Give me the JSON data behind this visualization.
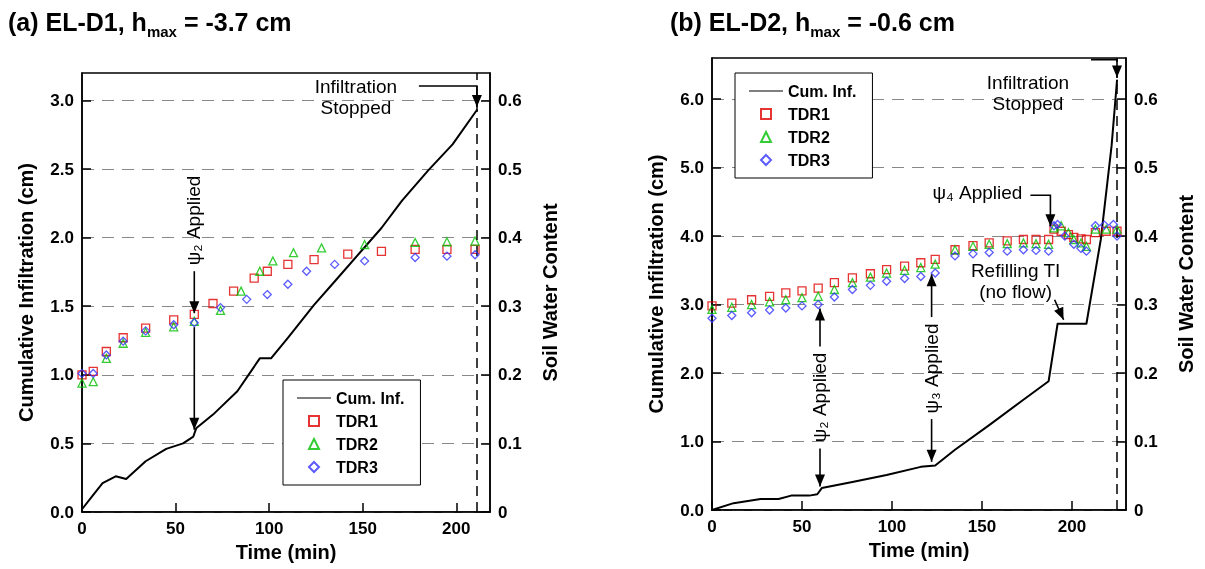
{
  "chart_data": [
    {
      "type": "line",
      "title": "(a) EL-D1, h$_{max}$ = -3.7 cm",
      "xlabel": "Time (min)",
      "ylabel": "Cumulative Infiltration (cm)",
      "y2label": "Soil Water Content",
      "xlim": [
        0,
        218
      ],
      "xticks": [
        0,
        50,
        100,
        150,
        200
      ],
      "ylim": [
        0,
        3.2
      ],
      "yticks": [
        {
          "value": 0,
          "label": "0.0"
        },
        {
          "value": 0.5,
          "label": "0.5"
        },
        {
          "value": 1,
          "label": "1.0"
        },
        {
          "value": 1.5,
          "label": "1.5"
        },
        {
          "value": 2,
          "label": "2.0"
        },
        {
          "value": 2.5,
          "label": "2.5"
        },
        {
          "value": 3,
          "label": "3.0"
        }
      ],
      "y2lim": [
        0,
        0.64
      ],
      "y2ticks": [
        0,
        0.1,
        0.2,
        0.3,
        0.4,
        0.5,
        0.6
      ],
      "grid": "y",
      "legend": "bottom right",
      "series": [
        {
          "name": "Cum. Inf.",
          "type": "line",
          "color": "#000000",
          "marker": "none",
          "line_style": "solid",
          "x": [
            0,
            5.7,
            11,
            18,
            23.6,
            34,
            45,
            54,
            59.5,
            61,
            70,
            83,
            90,
            95,
            101,
            110,
            117,
            124,
            135,
            151,
            160,
            171,
            185,
            198,
            211
          ],
          "values": [
            0.02,
            0.12,
            0.21,
            0.26,
            0.24,
            0.37,
            0.46,
            0.5,
            0.55,
            0.61,
            0.71,
            0.88,
            1.02,
            1.12,
            1.12,
            1.27,
            1.39,
            1.51,
            1.68,
            1.93,
            2.07,
            2.27,
            2.49,
            2.68,
            2.93
          ]
        },
        {
          "name": "TDR1",
          "type": "scatter",
          "axis": "y2",
          "color": "#e00000",
          "marker": "square",
          "x": [
            0,
            6,
            13,
            22,
            34,
            49,
            60,
            70,
            81,
            92,
            99,
            110,
            124,
            142,
            160,
            178,
            195,
            210
          ],
          "values": [
            0.2,
            0.205,
            0.234,
            0.254,
            0.268,
            0.28,
            0.288,
            0.304,
            0.322,
            0.341,
            0.351,
            0.361,
            0.368,
            0.376,
            0.38,
            0.383,
            0.383,
            0.383
          ]
        },
        {
          "name": "TDR2",
          "type": "scatter",
          "axis": "y2",
          "color": "#00c000",
          "marker": "triangle",
          "x": [
            0,
            6,
            13,
            22,
            34,
            49,
            60,
            74,
            85,
            95,
            102,
            113,
            128,
            151,
            178,
            195,
            210
          ],
          "values": [
            0.188,
            0.19,
            0.224,
            0.246,
            0.262,
            0.27,
            0.278,
            0.294,
            0.322,
            0.351,
            0.366,
            0.378,
            0.385,
            0.39,
            0.393,
            0.394,
            0.395
          ]
        },
        {
          "name": "TDR3",
          "type": "scatter",
          "axis": "y2",
          "color": "#3333ff",
          "marker": "diamond",
          "x": [
            0,
            6,
            13,
            22,
            34,
            49,
            60,
            74,
            88,
            99,
            110,
            120,
            135,
            151,
            178,
            195,
            210
          ],
          "values": [
            0.202,
            0.202,
            0.229,
            0.249,
            0.264,
            0.273,
            0.276,
            0.298,
            0.31,
            0.317,
            0.332,
            0.351,
            0.361,
            0.366,
            0.371,
            0.373,
            0.375
          ]
        }
      ],
      "ref_lines": [
        {
          "axis": "x",
          "value": 211,
          "color": "#000000",
          "line_style": "dashed"
        }
      ],
      "annotations": [
        {
          "text": "Infiltration Stopped",
          "x": 211,
          "y": 2.93
        },
        {
          "text": "ψ₂ Applied",
          "x": 60,
          "y": 1.42
        }
      ]
    },
    {
      "type": "line",
      "title": "(b) EL-D2, h$_{max}$ = -0.6 cm",
      "xlabel": "Time (min)",
      "ylabel": "Cumulative Infiltration (cm)",
      "y2label": "Soil Water Content",
      "xlim": [
        0,
        230
      ],
      "xticks": [
        0,
        50,
        100,
        150,
        200
      ],
      "ylim": [
        0,
        6.6
      ],
      "yticks": [
        {
          "value": 0,
          "label": "0.0"
        },
        {
          "value": 1,
          "label": "1.0"
        },
        {
          "value": 2,
          "label": "2.0"
        },
        {
          "value": 3,
          "label": "3.0"
        },
        {
          "value": 4,
          "label": "4.0"
        },
        {
          "value": 5,
          "label": "5.0"
        },
        {
          "value": 6,
          "label": "6.0"
        }
      ],
      "y2lim": [
        0,
        0.66
      ],
      "y2ticks": [
        0,
        0.1,
        0.2,
        0.3,
        0.4,
        0.5,
        0.6
      ],
      "grid": "y",
      "legend": "top left",
      "series": [
        {
          "name": "Cum. Inf.",
          "type": "line",
          "color": "#000000",
          "marker": "none",
          "line_style": "solid",
          "x": [
            0,
            12,
            27,
            37,
            44,
            54,
            58.5,
            61,
            78,
            97,
            116,
            124,
            135,
            154,
            173,
            187,
            192,
            208,
            216,
            222,
            225
          ],
          "values": [
            0,
            0.1,
            0.16,
            0.16,
            0.21,
            0.21,
            0.23,
            0.32,
            0.41,
            0.51,
            0.63,
            0.65,
            0.88,
            1.24,
            1.61,
            1.88,
            2.72,
            2.72,
            3.95,
            5.32,
            6.27
          ]
        },
        {
          "name": "TDR1",
          "type": "scatter",
          "axis": "y2",
          "color": "#e00000",
          "marker": "square",
          "x": [
            0,
            11,
            22,
            32,
            41,
            50,
            59,
            68,
            78,
            88,
            97,
            107,
            116,
            124,
            135,
            145,
            154,
            164,
            173,
            180,
            187,
            190,
            194,
            198,
            201,
            205,
            208,
            213,
            219,
            225
          ],
          "values": [
            0.298,
            0.302,
            0.307,
            0.312,
            0.317,
            0.32,
            0.324,
            0.332,
            0.339,
            0.345,
            0.351,
            0.356,
            0.361,
            0.366,
            0.38,
            0.386,
            0.39,
            0.393,
            0.395,
            0.395,
            0.395,
            0.41,
            0.407,
            0.402,
            0.398,
            0.396,
            0.395,
            0.405,
            0.407,
            0.407
          ]
        },
        {
          "name": "TDR2",
          "type": "scatter",
          "axis": "y2",
          "color": "#00c000",
          "marker": "triangle",
          "x": [
            0,
            11,
            22,
            32,
            41,
            50,
            59,
            68,
            78,
            88,
            97,
            107,
            116,
            124,
            135,
            145,
            154,
            164,
            173,
            180,
            187,
            190,
            194,
            198,
            201,
            205,
            208,
            213,
            219,
            225
          ],
          "values": [
            0.293,
            0.296,
            0.3,
            0.304,
            0.307,
            0.31,
            0.312,
            0.322,
            0.332,
            0.34,
            0.346,
            0.35,
            0.354,
            0.359,
            0.38,
            0.385,
            0.388,
            0.389,
            0.39,
            0.389,
            0.388,
            0.412,
            0.415,
            0.405,
            0.395,
            0.39,
            0.385,
            0.41,
            0.41,
            0.41
          ]
        },
        {
          "name": "TDR3",
          "type": "scatter",
          "axis": "y2",
          "color": "#3333ff",
          "marker": "diamond",
          "x": [
            0,
            11,
            22,
            32,
            41,
            50,
            59,
            68,
            78,
            88,
            97,
            107,
            116,
            124,
            135,
            145,
            154,
            164,
            173,
            180,
            187,
            190,
            192,
            196,
            201,
            205,
            208,
            213,
            218,
            223,
            225
          ],
          "values": [
            0.28,
            0.284,
            0.288,
            0.292,
            0.295,
            0.298,
            0.3,
            0.311,
            0.322,
            0.328,
            0.334,
            0.338,
            0.341,
            0.346,
            0.371,
            0.374,
            0.376,
            0.378,
            0.38,
            0.379,
            0.378,
            0.415,
            0.417,
            0.4,
            0.388,
            0.382,
            0.378,
            0.415,
            0.416,
            0.417,
            0.4
          ]
        }
      ],
      "ref_lines": [
        {
          "axis": "x",
          "value": 225,
          "color": "#000000",
          "line_style": "dashed"
        }
      ],
      "annotations": [
        {
          "text": "Infiltration Stopped",
          "x": 225,
          "y": 6.27
        },
        {
          "text": "ψ₂ Applied",
          "x": 60,
          "y": 3.0
        },
        {
          "text": "ψ₃ Applied",
          "x": 122,
          "y": 3.5
        },
        {
          "text": "ψ₄ Applied",
          "x": 188,
          "y": 4.1
        },
        {
          "text": "Refilling TI (no flow)",
          "x": 197,
          "y": 2.72
        }
      ]
    }
  ]
}
